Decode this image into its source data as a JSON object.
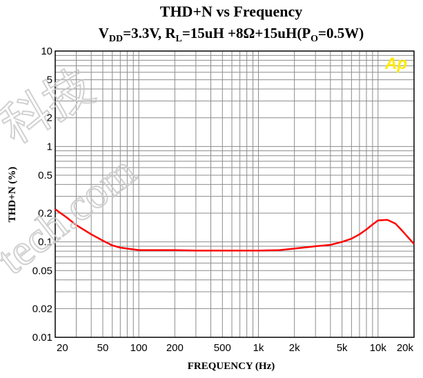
{
  "chart_data": {
    "type": "line",
    "title": "THD+N vs Frequency",
    "subtitle": "V_DD=3.3V, R_L=15uH +8Ω+15uH(P_O=0.5W)",
    "subtitle_parts": {
      "v": "V",
      "v_sub": "DD",
      "v_rest": "=3.3V, R",
      "r_sub": "L",
      "r_rest": "=15uH +8Ω+15uH(P",
      "p_sub": "O",
      "p_rest": "=0.5W)"
    },
    "xlabel": "FREQUENCY (Hz)",
    "ylabel": "THD+N (%)",
    "x_scale": "log",
    "y_scale": "log",
    "xlim": [
      20,
      20000
    ],
    "ylim": [
      0.01,
      10
    ],
    "grid": true,
    "x_ticks": [
      {
        "value": 20,
        "label": "20"
      },
      {
        "value": 50,
        "label": "50"
      },
      {
        "value": 100,
        "label": "100"
      },
      {
        "value": 200,
        "label": "200"
      },
      {
        "value": 500,
        "label": "500"
      },
      {
        "value": 1000,
        "label": "1k"
      },
      {
        "value": 2000,
        "label": "2k"
      },
      {
        "value": 5000,
        "label": "5k"
      },
      {
        "value": 10000,
        "label": "10k"
      },
      {
        "value": 20000,
        "label": "20k"
      }
    ],
    "y_ticks": [
      {
        "value": 10,
        "label": "10"
      },
      {
        "value": 5,
        "label": "5"
      },
      {
        "value": 2,
        "label": "2"
      },
      {
        "value": 1,
        "label": "1"
      },
      {
        "value": 0.5,
        "label": "0.5"
      },
      {
        "value": 0.2,
        "label": "0.2"
      },
      {
        "value": 0.1,
        "label": "0.1"
      },
      {
        "value": 0.05,
        "label": "0.05"
      },
      {
        "value": 0.02,
        "label": "0.02"
      },
      {
        "value": 0.01,
        "label": "0.01"
      }
    ],
    "series": [
      {
        "color": "#ff0000",
        "x": [
          20,
          25,
          30,
          40,
          50,
          60,
          70,
          80,
          100,
          150,
          200,
          300,
          500,
          700,
          1000,
          1500,
          2000,
          3000,
          4000,
          5000,
          6000,
          7000,
          8000,
          9000,
          10000,
          12000,
          14000,
          16000,
          18000,
          20000
        ],
        "values": [
          0.22,
          0.18,
          0.15,
          0.12,
          0.103,
          0.092,
          0.087,
          0.085,
          0.082,
          0.082,
          0.082,
          0.081,
          0.081,
          0.081,
          0.081,
          0.082,
          0.085,
          0.09,
          0.093,
          0.1,
          0.108,
          0.12,
          0.135,
          0.152,
          0.168,
          0.17,
          0.155,
          0.13,
          0.11,
          0.095
        ]
      }
    ]
  },
  "logo_text": "Ap",
  "watermark": [
    "科技",
    "tech.com"
  ]
}
